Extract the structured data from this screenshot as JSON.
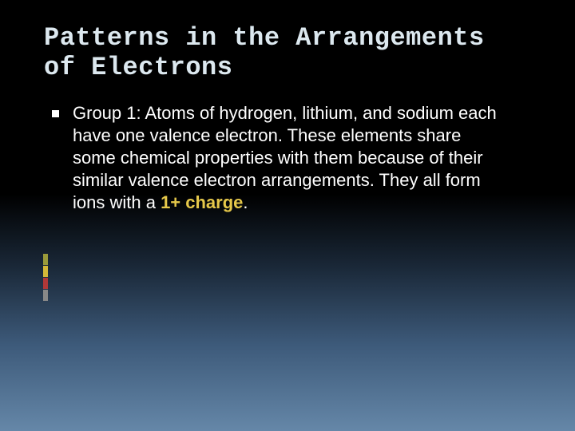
{
  "slide": {
    "title": "Patterns in the Arrangements of Electrons",
    "bullet_text_before": "Group 1: Atoms of hydrogen, lithium, and sodium each have one valence electron. These elements share some chemical properties with them because of their similar valence electron arrangements. They all form ions with a ",
    "bullet_highlight": "1+ charge",
    "bullet_text_after": "."
  },
  "style": {
    "title_font": "Consolas",
    "title_fontsize": 32,
    "title_color": "#dce8ef",
    "body_font": "Corbel",
    "body_fontsize": 22,
    "body_color": "#ffffff",
    "highlight_color": "#e6c84a",
    "background_gradient": [
      "#000000",
      "#000000",
      "#1a2838",
      "#3d5a7a",
      "#6587a8"
    ],
    "accent_bars": [
      "#9a9a3a",
      "#d4b838",
      "#b03838",
      "#888888"
    ],
    "bullet_marker": "square"
  }
}
